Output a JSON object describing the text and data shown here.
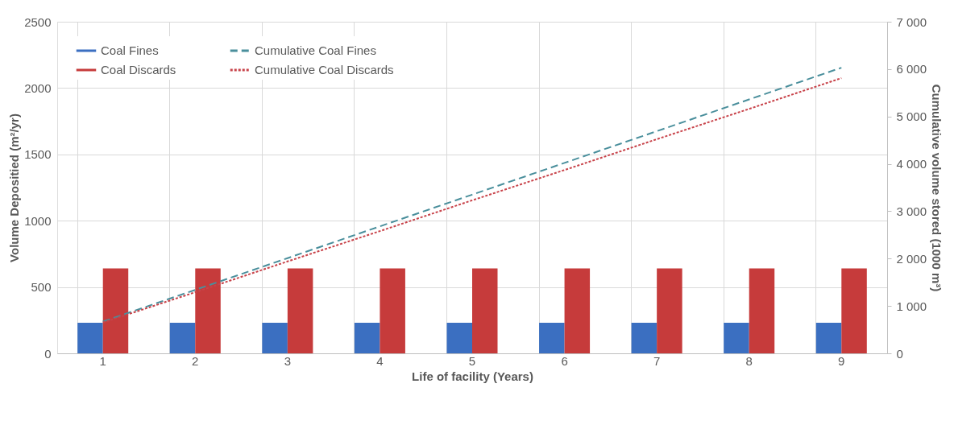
{
  "chart_data": {
    "type": "bar",
    "xlabel": "Life of facility (Years)",
    "ylabel": "Volume Depositied (m²/yr)",
    "y2label": "Cumulative volume stored (1000 m³)",
    "categories": [
      "1",
      "2",
      "3",
      "4",
      "5",
      "6",
      "7",
      "8",
      "9"
    ],
    "series": [
      {
        "name": "Coal Fines",
        "color": "#3b6fc1",
        "values": [
          230,
          230,
          230,
          230,
          230,
          230,
          230,
          230,
          230
        ]
      },
      {
        "name": "Coal Discards",
        "color": "#c63b3b",
        "values": [
          640,
          640,
          640,
          640,
          640,
          640,
          640,
          640,
          640
        ]
      },
      {
        "name": "Cumulative Coal Fines",
        "type": "line",
        "axis": "y2",
        "line_style": "dashed",
        "color": "#4a8f9c",
        "values": [
          670,
          1340,
          2010,
          2680,
          3350,
          4020,
          4690,
          5360,
          6030
        ]
      },
      {
        "name": "Cumulative Coal Discards",
        "type": "line",
        "axis": "y2",
        "line_style": "dotted",
        "color": "#c8434a",
        "values": [
          650,
          1290,
          1940,
          2580,
          3230,
          3870,
          4520,
          5160,
          5810
        ]
      }
    ],
    "ylim": [
      0,
      2500
    ],
    "yticks": [
      0,
      500,
      1000,
      1500,
      2000,
      2500
    ],
    "y2lim": [
      0,
      7000
    ],
    "y2ticks": [
      {
        "value": 0,
        "label": "0"
      },
      {
        "value": 1000,
        "label": "1 000"
      },
      {
        "value": 2000,
        "label": "2 000"
      },
      {
        "value": 3000,
        "label": "3 000"
      },
      {
        "value": 4000,
        "label": "4 000"
      },
      {
        "value": 5000,
        "label": "5 000"
      },
      {
        "value": 6000,
        "label": "6 000"
      },
      {
        "value": 7000,
        "label": "7 000"
      }
    ],
    "grid": true,
    "legend": "top left"
  }
}
